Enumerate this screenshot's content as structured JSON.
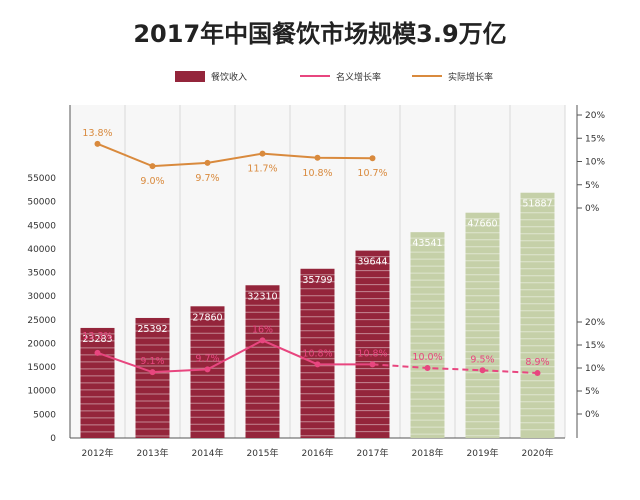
{
  "chart_data": {
    "type": "bar",
    "title": "2017年中国餐饮市场规模3.9万亿",
    "categories": [
      "2012年",
      "2013年",
      "2014年",
      "2015年",
      "2016年",
      "2017年",
      "2018年",
      "2019年",
      "2020年"
    ],
    "bar_series": {
      "name": "餐饮收入",
      "values": [
        23283,
        25392,
        27860,
        32310,
        35799,
        39644,
        43541,
        47660,
        51887
      ],
      "value_labels": [
        "23283",
        "25392",
        "27860",
        "32310",
        "35799",
        "39644",
        "43541",
        "47660",
        "51887"
      ],
      "actual_color": "#94253b",
      "forecast_color": "#c5d0a8",
      "forecast_from_index": 6
    },
    "nominal_growth": {
      "name": "名义增长率",
      "color": "#e8467f",
      "values": [
        13.3,
        9.1,
        9.7,
        16,
        10.8,
        10.8,
        10.0,
        9.5,
        8.9
      ],
      "labels": [
        "13.3%",
        "9.1%",
        "9.7%",
        "16%",
        "10.8%",
        "10.8%",
        "10.0%",
        "9.5%",
        "8.9%"
      ],
      "dashed_from_index": 5
    },
    "real_growth": {
      "name": "实际增长率",
      "color": "#d98a3d",
      "values": [
        13.8,
        9.0,
        9.7,
        11.7,
        10.8,
        10.7
      ],
      "labels": [
        "13.8%",
        "9.0%",
        "9.7%",
        "11.7%",
        "10.8%",
        "10.7%"
      ]
    },
    "left_axis": {
      "ylim": [
        0,
        55000
      ],
      "ticks": [
        "0",
        "5000",
        "10000",
        "15000",
        "20000",
        "25000",
        "30000",
        "35000",
        "40000",
        "45000",
        "50000",
        "55000"
      ]
    },
    "right_axis_upper": {
      "ylim": [
        0,
        20
      ],
      "ticks": [
        "0%",
        "5%",
        "10%",
        "15%",
        "20%"
      ]
    },
    "right_axis_lower": {
      "ylim": [
        0,
        20
      ],
      "ticks": [
        "0%",
        "5%",
        "10%",
        "15%",
        "20%"
      ]
    },
    "legend_position": "top-center",
    "grid": false
  }
}
